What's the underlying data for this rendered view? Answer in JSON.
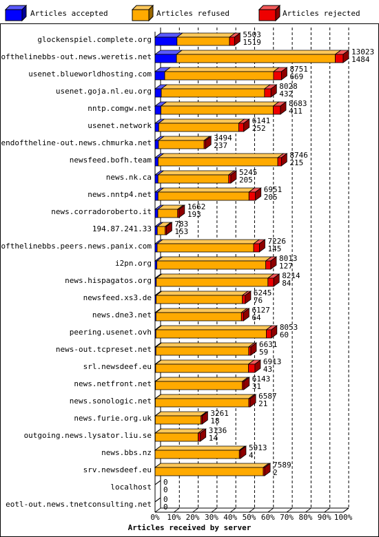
{
  "chart_data": {
    "type": "stacked-bar-3d",
    "orientation": "horizontal",
    "x_label": "Articles received by server",
    "categories": [
      "glockenspiel.complete.org",
      "endofthelinebbs-out.news.weretis.net",
      "usenet.blueworldhosting.com",
      "usenet.goja.nl.eu.org",
      "nntp.comgw.net",
      "usenet.network",
      "endoftheline-out.news.chmurka.net",
      "newsfeed.bofh.team",
      "news.nk.ca",
      "news.nntp4.net",
      "news.corradoroberto.it",
      "194.87.241.33",
      "endofthelinebbs.peers.news.panix.com",
      "i2pn.org",
      "news.hispagatos.org",
      "newsfeed.xs3.de",
      "news.dne3.net",
      "peering.usenet.ovh",
      "news-out.tcpreset.net",
      "srl.newsdeef.eu",
      "news.netfront.net",
      "news.sonologic.net",
      "news.furie.org.uk",
      "outgoing.news.lysator.liu.se",
      "news.bbs.nz",
      "srv.newsdeef.eu",
      "localhost",
      "eotl-out.news.tnetconsulting.net"
    ],
    "totals": [
      5503,
      13023,
      8751,
      8028,
      8683,
      6141,
      3494,
      8746,
      5245,
      6951,
      1662,
      783,
      7226,
      8013,
      8214,
      6245,
      6127,
      8053,
      6631,
      6913,
      6143,
      6587,
      3261,
      3136,
      5913,
      7589,
      0,
      0
    ],
    "series": [
      {
        "name": "Articles accepted",
        "color": "#0000ff",
        "values": [
          1519,
          1484,
          669,
          432,
          411,
          252,
          237,
          215,
          205,
          205,
          193,
          153,
          145,
          127,
          84,
          76,
          64,
          60,
          59,
          43,
          31,
          21,
          18,
          14,
          4,
          2,
          0,
          0
        ]
      },
      {
        "name": "Articles refused",
        "color": "#ffaa00",
        "values": [
          3634,
          10989,
          7532,
          7146,
          7772,
          5539,
          3157,
          8281,
          4890,
          6296,
          1369,
          550,
          6681,
          7536,
          7730,
          5969,
          5913,
          7643,
          6422,
          6420,
          6012,
          6466,
          3163,
          2972,
          5829,
          7487,
          0,
          0
        ]
      },
      {
        "name": "Articles rejected",
        "color": "#ee0000",
        "values": [
          350,
          550,
          550,
          450,
          500,
          350,
          100,
          250,
          150,
          450,
          100,
          80,
          400,
          350,
          400,
          200,
          150,
          350,
          150,
          450,
          100,
          100,
          80,
          150,
          80,
          100,
          0,
          0
        ]
      }
    ],
    "xlim": [
      0,
      13023
    ],
    "xticks": [
      {
        "value": 0,
        "label": "0%"
      },
      {
        "value": 1302.3,
        "label": "10%"
      },
      {
        "value": 2604.6,
        "label": "20%"
      },
      {
        "value": 3906.9,
        "label": "30%"
      },
      {
        "value": 5209.2,
        "label": "40%"
      },
      {
        "value": 6511.5,
        "label": "50%"
      },
      {
        "value": 7813.8,
        "label": "60%"
      },
      {
        "value": 9116.1,
        "label": "70%"
      },
      {
        "value": 10418.4,
        "label": "80%"
      },
      {
        "value": 11720.7,
        "label": "90%"
      },
      {
        "value": 13023,
        "label": "100%"
      }
    ],
    "grid": true
  }
}
